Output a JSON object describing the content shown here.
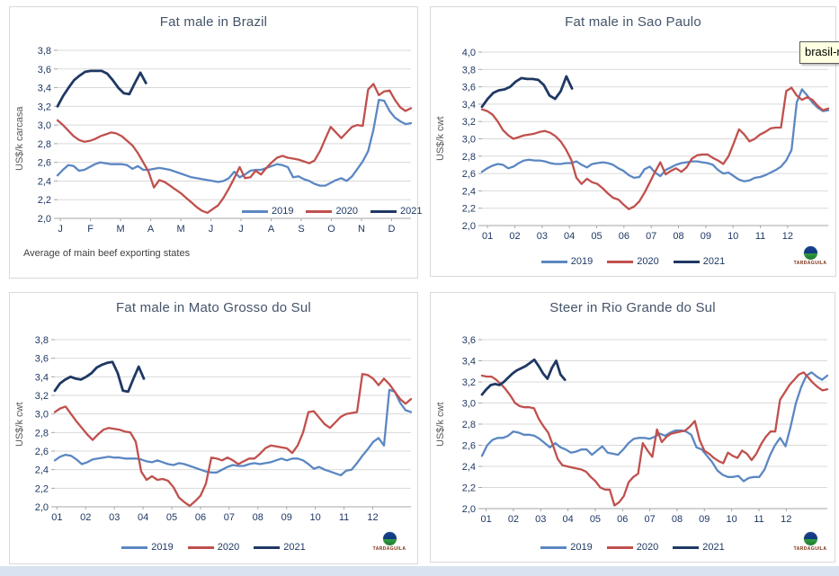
{
  "colors": {
    "s2019": "#5B87C2",
    "s2020": "#C0504D",
    "s2021": "#1F3864",
    "grid": "#D9D9D9",
    "axis_line": "#A6A6A6",
    "tick_text": "#1F3864",
    "title_text": "#44546A",
    "axis_title_text": "#595959",
    "panel_border": "#D9D9D9",
    "bottom_strip": "#D9E2F1"
  },
  "tooltip": {
    "text": "brasil-r",
    "bg": "#FFFFE1",
    "border": "#5A5A5A"
  },
  "logo": {
    "text": "TARDAGUILA"
  },
  "chart_data": [
    {
      "type": "line",
      "title": "Fat male in Brazil",
      "ylabel": "US$/k carcasa",
      "ylim": [
        2.0,
        3.8
      ],
      "ytick_labels": [
        "2,0",
        "2,2",
        "2,4",
        "2,6",
        "2,8",
        "3,0",
        "3,2",
        "3,4",
        "3,6",
        "3,8"
      ],
      "x_tick_labels": [
        "J",
        "F",
        "M",
        "A",
        "M",
        "J",
        "J",
        "A",
        "S",
        "O",
        "N",
        "D"
      ],
      "legend_position": "inside",
      "footnote": "Average of main beef exporting states",
      "show_logo": false,
      "grid": true,
      "series": [
        {
          "name": "2019",
          "color": "#5B87C2",
          "end_f": 1.0,
          "values": [
            2.46,
            2.52,
            2.57,
            2.56,
            2.51,
            2.52,
            2.55,
            2.58,
            2.6,
            2.59,
            2.58,
            2.58,
            2.58,
            2.57,
            2.53,
            2.56,
            2.52,
            2.52,
            2.53,
            2.54,
            2.53,
            2.52,
            2.5,
            2.48,
            2.46,
            2.44,
            2.43,
            2.42,
            2.41,
            2.4,
            2.39,
            2.4,
            2.43,
            2.5,
            2.44,
            2.47,
            2.51,
            2.52,
            2.52,
            2.54,
            2.56,
            2.58,
            2.57,
            2.55,
            2.44,
            2.45,
            2.42,
            2.4,
            2.37,
            2.35,
            2.35,
            2.38,
            2.41,
            2.43,
            2.4,
            2.45,
            2.53,
            2.61,
            2.72,
            2.95,
            3.27,
            3.26,
            3.15,
            3.08,
            3.04,
            3.01,
            3.02
          ]
        },
        {
          "name": "2020",
          "color": "#C0504D",
          "end_f": 1.0,
          "values": [
            3.05,
            3.0,
            2.94,
            2.88,
            2.84,
            2.82,
            2.83,
            2.85,
            2.88,
            2.9,
            2.92,
            2.91,
            2.88,
            2.83,
            2.78,
            2.7,
            2.6,
            2.5,
            2.33,
            2.41,
            2.39,
            2.35,
            2.31,
            2.27,
            2.22,
            2.17,
            2.12,
            2.08,
            2.06,
            2.1,
            2.14,
            2.22,
            2.32,
            2.43,
            2.55,
            2.43,
            2.44,
            2.51,
            2.47,
            2.54,
            2.6,
            2.65,
            2.67,
            2.65,
            2.64,
            2.63,
            2.61,
            2.59,
            2.62,
            2.72,
            2.85,
            2.98,
            2.92,
            2.86,
            2.92,
            2.98,
            3.0,
            2.99,
            3.38,
            3.44,
            3.32,
            3.36,
            3.37,
            3.27,
            3.19,
            3.15,
            3.18
          ]
        },
        {
          "name": "2021",
          "color": "#1F3864",
          "end_f": 0.25,
          "values": [
            3.2,
            3.31,
            3.4,
            3.48,
            3.53,
            3.57,
            3.58,
            3.58,
            3.58,
            3.55,
            3.48,
            3.4,
            3.34,
            3.33,
            3.45,
            3.56,
            3.45
          ]
        }
      ]
    },
    {
      "type": "line",
      "title": "Fat male in Sao Paulo",
      "ylabel": "US$/k cwt",
      "ylim": [
        2.0,
        4.0
      ],
      "ytick_labels": [
        "2,0",
        "2,2",
        "2,4",
        "2,6",
        "2,8",
        "3,0",
        "3,2",
        "3,4",
        "3,6",
        "3,8",
        "4,0"
      ],
      "x_tick_labels": [
        "01",
        "02",
        "03",
        "04",
        "05",
        "06",
        "07",
        "08",
        "09",
        "10",
        "11",
        "12"
      ],
      "legend_position": "below",
      "footnote": "",
      "show_logo": true,
      "grid": true,
      "series": [
        {
          "name": "2019",
          "color": "#5B87C2",
          "end_f": 1.0,
          "values": [
            2.62,
            2.66,
            2.69,
            2.71,
            2.7,
            2.66,
            2.68,
            2.72,
            2.75,
            2.76,
            2.75,
            2.75,
            2.74,
            2.72,
            2.71,
            2.71,
            2.72,
            2.72,
            2.74,
            2.7,
            2.67,
            2.71,
            2.72,
            2.73,
            2.72,
            2.7,
            2.66,
            2.63,
            2.58,
            2.55,
            2.56,
            2.65,
            2.68,
            2.61,
            2.57,
            2.64,
            2.67,
            2.7,
            2.72,
            2.73,
            2.74,
            2.74,
            2.73,
            2.72,
            2.7,
            2.64,
            2.6,
            2.61,
            2.57,
            2.53,
            2.51,
            2.52,
            2.55,
            2.56,
            2.58,
            2.61,
            2.64,
            2.68,
            2.75,
            2.87,
            3.42,
            3.57,
            3.5,
            3.42,
            3.36,
            3.32,
            3.33
          ]
        },
        {
          "name": "2020",
          "color": "#C0504D",
          "end_f": 1.0,
          "values": [
            3.34,
            3.32,
            3.28,
            3.2,
            3.1,
            3.04,
            3.0,
            3.02,
            3.04,
            3.05,
            3.06,
            3.08,
            3.09,
            3.07,
            3.03,
            2.97,
            2.88,
            2.76,
            2.55,
            2.48,
            2.54,
            2.5,
            2.48,
            2.43,
            2.37,
            2.32,
            2.3,
            2.24,
            2.19,
            2.22,
            2.28,
            2.38,
            2.5,
            2.62,
            2.73,
            2.59,
            2.63,
            2.66,
            2.62,
            2.67,
            2.77,
            2.81,
            2.82,
            2.82,
            2.78,
            2.75,
            2.71,
            2.8,
            2.95,
            3.11,
            3.05,
            2.97,
            3.0,
            3.05,
            3.08,
            3.12,
            3.13,
            3.13,
            3.55,
            3.59,
            3.5,
            3.45,
            3.48,
            3.45,
            3.38,
            3.33,
            3.35
          ]
        },
        {
          "name": "2021",
          "color": "#1F3864",
          "end_f": 0.26,
          "values": [
            3.37,
            3.46,
            3.53,
            3.56,
            3.57,
            3.6,
            3.66,
            3.7,
            3.69,
            3.69,
            3.68,
            3.62,
            3.5,
            3.46,
            3.55,
            3.72,
            3.58
          ]
        }
      ]
    },
    {
      "type": "line",
      "title": "Fat male in Mato Grosso do Sul",
      "ylabel": "US$/k cwt",
      "ylim": [
        2.0,
        3.8
      ],
      "ytick_labels": [
        "2,0",
        "2,2",
        "2,4",
        "2,6",
        "2,8",
        "3,0",
        "3,2",
        "3,4",
        "3,6",
        "3,8"
      ],
      "x_tick_labels": [
        "01",
        "02",
        "03",
        "04",
        "05",
        "06",
        "07",
        "08",
        "09",
        "10",
        "11",
        "12"
      ],
      "legend_position": "below",
      "footnote": "",
      "show_logo": true,
      "grid": true,
      "series": [
        {
          "name": "2019",
          "color": "#5B87C2",
          "end_f": 1.0,
          "values": [
            2.5,
            2.54,
            2.56,
            2.55,
            2.51,
            2.46,
            2.48,
            2.51,
            2.52,
            2.53,
            2.54,
            2.53,
            2.53,
            2.52,
            2.52,
            2.52,
            2.51,
            2.49,
            2.48,
            2.5,
            2.48,
            2.46,
            2.45,
            2.47,
            2.46,
            2.44,
            2.42,
            2.4,
            2.38,
            2.37,
            2.37,
            2.4,
            2.43,
            2.45,
            2.44,
            2.44,
            2.46,
            2.47,
            2.46,
            2.47,
            2.48,
            2.5,
            2.52,
            2.5,
            2.52,
            2.52,
            2.5,
            2.46,
            2.41,
            2.43,
            2.4,
            2.38,
            2.36,
            2.34,
            2.39,
            2.4,
            2.47,
            2.55,
            2.62,
            2.7,
            2.74,
            2.66,
            3.26,
            3.24,
            3.12,
            3.04,
            3.02
          ]
        },
        {
          "name": "2020",
          "color": "#C0504D",
          "end_f": 1.0,
          "values": [
            3.02,
            3.06,
            3.08,
            3.0,
            2.92,
            2.85,
            2.78,
            2.72,
            2.78,
            2.83,
            2.85,
            2.84,
            2.83,
            2.81,
            2.8,
            2.7,
            2.38,
            2.29,
            2.33,
            2.29,
            2.3,
            2.28,
            2.21,
            2.1,
            2.05,
            2.01,
            2.06,
            2.12,
            2.25,
            2.53,
            2.52,
            2.5,
            2.53,
            2.5,
            2.46,
            2.49,
            2.52,
            2.52,
            2.57,
            2.63,
            2.66,
            2.65,
            2.64,
            2.63,
            2.58,
            2.66,
            2.8,
            3.02,
            3.03,
            2.96,
            2.89,
            2.85,
            2.91,
            2.97,
            3.0,
            3.01,
            3.02,
            3.43,
            3.42,
            3.38,
            3.31,
            3.38,
            3.32,
            3.24,
            3.16,
            3.11,
            3.16
          ]
        },
        {
          "name": "2021",
          "color": "#1F3864",
          "end_f": 0.25,
          "values": [
            3.25,
            3.33,
            3.37,
            3.4,
            3.38,
            3.37,
            3.4,
            3.44,
            3.5,
            3.53,
            3.55,
            3.56,
            3.44,
            3.25,
            3.24,
            3.38,
            3.51,
            3.38
          ]
        }
      ]
    },
    {
      "type": "line",
      "title": "Steer in Rio Grande do Sul",
      "ylabel": "US$/k cwt",
      "ylim": [
        2.0,
        3.6
      ],
      "ytick_labels": [
        "2,0",
        "2,2",
        "2,4",
        "2,6",
        "2,8",
        "3,0",
        "3,2",
        "3,4",
        "3,6"
      ],
      "x_tick_labels": [
        "01",
        "02",
        "03",
        "04",
        "05",
        "06",
        "07",
        "08",
        "09",
        "10",
        "11",
        "12"
      ],
      "legend_position": "below",
      "footnote": "",
      "show_logo": true,
      "grid": true,
      "series": [
        {
          "name": "2019",
          "color": "#5B87C2",
          "end_f": 1.0,
          "values": [
            2.5,
            2.6,
            2.65,
            2.67,
            2.67,
            2.69,
            2.73,
            2.72,
            2.7,
            2.7,
            2.69,
            2.66,
            2.62,
            2.58,
            2.62,
            2.58,
            2.56,
            2.53,
            2.54,
            2.56,
            2.56,
            2.51,
            2.55,
            2.59,
            2.53,
            2.52,
            2.51,
            2.56,
            2.62,
            2.66,
            2.67,
            2.67,
            2.66,
            2.68,
            2.71,
            2.69,
            2.72,
            2.74,
            2.74,
            2.73,
            2.7,
            2.58,
            2.56,
            2.5,
            2.44,
            2.36,
            2.32,
            2.3,
            2.3,
            2.31,
            2.26,
            2.29,
            2.3,
            2.3,
            2.37,
            2.5,
            2.6,
            2.67,
            2.59,
            2.78,
            3.0,
            3.15,
            3.26,
            3.29,
            3.25,
            3.22,
            3.26
          ]
        },
        {
          "name": "2020",
          "color": "#C0504D",
          "end_f": 1.0,
          "values": [
            3.26,
            3.25,
            3.25,
            3.22,
            3.18,
            3.13,
            3.07,
            3.0,
            2.97,
            2.96,
            2.96,
            2.95,
            2.85,
            2.78,
            2.72,
            2.6,
            2.47,
            2.41,
            2.4,
            2.39,
            2.38,
            2.37,
            2.35,
            2.3,
            2.26,
            2.2,
            2.18,
            2.18,
            2.03,
            2.06,
            2.12,
            2.25,
            2.3,
            2.33,
            2.62,
            2.55,
            2.49,
            2.75,
            2.63,
            2.68,
            2.71,
            2.72,
            2.73,
            2.74,
            2.78,
            2.83,
            2.65,
            2.55,
            2.52,
            2.48,
            2.45,
            2.43,
            2.53,
            2.5,
            2.48,
            2.55,
            2.52,
            2.46,
            2.52,
            2.61,
            2.68,
            2.73,
            2.73,
            3.03,
            3.1,
            3.17,
            3.22,
            3.27,
            3.29,
            3.24,
            3.19,
            3.15,
            3.12,
            3.13
          ]
        },
        {
          "name": "2021",
          "color": "#1F3864",
          "end_f": 0.24,
          "values": [
            3.08,
            3.13,
            3.17,
            3.18,
            3.17,
            3.2,
            3.24,
            3.28,
            3.31,
            3.33,
            3.35,
            3.38,
            3.41,
            3.35,
            3.28,
            3.23,
            3.33,
            3.4,
            3.27,
            3.22
          ]
        }
      ]
    }
  ]
}
